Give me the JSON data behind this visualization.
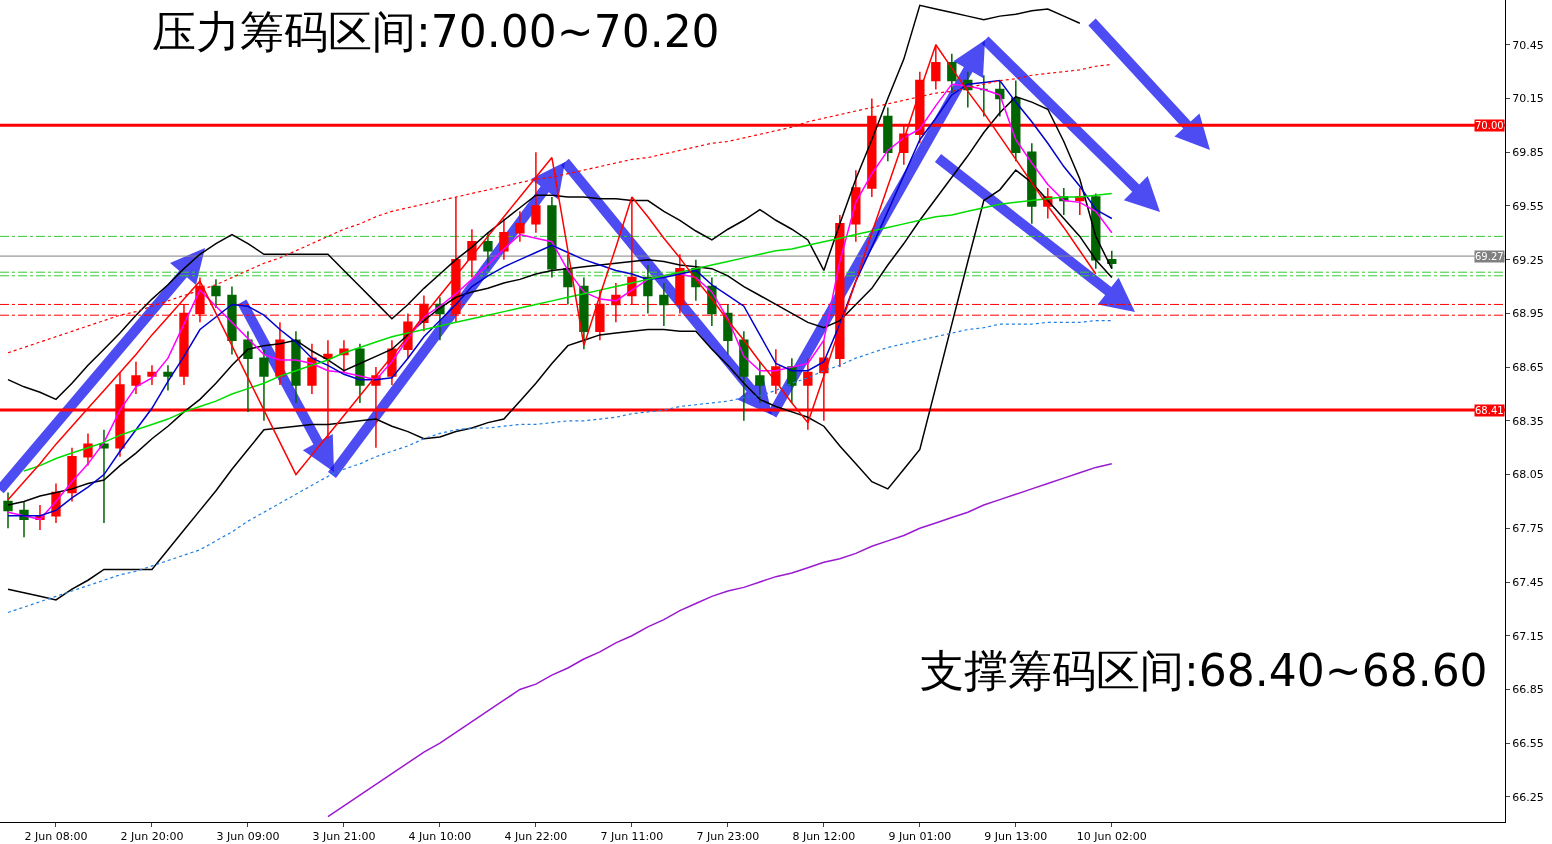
{
  "chart_data": {
    "type": "candlestick",
    "annotations": [
      "压力筹码区间:70.00~70.20",
      "支撑筹码区间:68.40~68.60"
    ],
    "categories": [
      null,
      null,
      null,
      "2 Jun 08:00",
      null,
      null,
      null,
      null,
      null,
      "2 Jun 20:00",
      null,
      null,
      null,
      null,
      null,
      "3 Jun 09:00",
      null,
      null,
      null,
      null,
      null,
      "3 Jun 21:00",
      null,
      null,
      null,
      null,
      null,
      "4 Jun 10:00",
      null,
      null,
      null,
      null,
      null,
      "4 Jun 22:00",
      null,
      null,
      null,
      null,
      null,
      "7 Jun 11:00",
      null,
      null,
      null,
      null,
      null,
      "7 Jun 23:00",
      null,
      null,
      null,
      null,
      null,
      "8 Jun 12:00",
      null,
      null,
      null,
      null,
      null,
      "9 Jun 01:00",
      null,
      null,
      null,
      null,
      null,
      "9 Jun 13:00",
      null,
      null,
      null,
      null,
      null,
      "10 Jun 02:00"
    ],
    "ohlc": [
      [
        67.9,
        67.95,
        67.75,
        67.85
      ],
      [
        67.85,
        67.9,
        67.7,
        67.8
      ],
      [
        67.8,
        67.88,
        67.74,
        67.82
      ],
      [
        67.82,
        68.0,
        67.78,
        67.95
      ],
      [
        67.95,
        68.2,
        67.9,
        68.15
      ],
      [
        68.15,
        68.28,
        68.1,
        68.22
      ],
      [
        68.22,
        68.3,
        67.78,
        68.2
      ],
      [
        68.2,
        68.62,
        68.15,
        68.55
      ],
      [
        68.55,
        68.68,
        68.5,
        68.6
      ],
      [
        68.6,
        68.66,
        68.55,
        68.62
      ],
      [
        68.62,
        68.66,
        68.52,
        68.6
      ],
      [
        68.6,
        69.0,
        68.55,
        68.95
      ],
      [
        68.95,
        69.15,
        68.9,
        69.1
      ],
      [
        69.1,
        69.14,
        68.98,
        69.05
      ],
      [
        69.05,
        69.1,
        68.72,
        68.8
      ],
      [
        68.8,
        68.85,
        68.4,
        68.7
      ],
      [
        68.7,
        68.75,
        68.35,
        68.6
      ],
      [
        68.6,
        68.9,
        68.55,
        68.8
      ],
      [
        68.8,
        68.85,
        68.45,
        68.55
      ],
      [
        68.55,
        68.78,
        68.5,
        68.7
      ],
      [
        68.7,
        68.8,
        68.25,
        68.72
      ],
      [
        68.72,
        68.8,
        68.62,
        68.75
      ],
      [
        68.75,
        68.78,
        68.45,
        68.55
      ],
      [
        68.55,
        68.65,
        68.2,
        68.6
      ],
      [
        68.6,
        68.8,
        68.55,
        68.75
      ],
      [
        68.75,
        68.95,
        68.7,
        68.9
      ],
      [
        68.9,
        69.05,
        68.85,
        69.0
      ],
      [
        69.0,
        69.04,
        68.8,
        68.95
      ],
      [
        68.95,
        69.6,
        68.9,
        69.25
      ],
      [
        69.25,
        69.42,
        69.15,
        69.35
      ],
      [
        69.35,
        69.4,
        69.2,
        69.3
      ],
      [
        69.3,
        69.48,
        69.25,
        69.4
      ],
      [
        69.4,
        69.52,
        69.35,
        69.45
      ],
      [
        69.45,
        69.85,
        69.4,
        69.55
      ],
      [
        69.55,
        69.6,
        69.15,
        69.2
      ],
      [
        69.2,
        69.28,
        69.0,
        69.1
      ],
      [
        69.1,
        69.15,
        68.75,
        68.85
      ],
      [
        68.85,
        69.08,
        68.8,
        69.0
      ],
      [
        69.0,
        69.12,
        68.9,
        69.05
      ],
      [
        69.05,
        69.6,
        69.0,
        69.15
      ],
      [
        69.15,
        69.22,
        68.95,
        69.05
      ],
      [
        69.05,
        69.12,
        68.88,
        69.0
      ],
      [
        69.0,
        69.28,
        68.95,
        69.2
      ],
      [
        69.2,
        69.25,
        69.02,
        69.1
      ],
      [
        69.1,
        69.15,
        68.88,
        68.95
      ],
      [
        68.95,
        69.0,
        68.72,
        68.8
      ],
      [
        68.8,
        68.85,
        68.35,
        68.6
      ],
      [
        68.6,
        68.68,
        68.45,
        68.55
      ],
      [
        68.55,
        68.75,
        68.5,
        68.65
      ],
      [
        68.65,
        68.7,
        68.45,
        68.55
      ],
      [
        68.55,
        68.7,
        68.3,
        68.62
      ],
      [
        68.62,
        68.8,
        68.35,
        68.7
      ],
      [
        68.7,
        69.5,
        68.65,
        69.45
      ],
      [
        69.45,
        69.75,
        69.35,
        69.65
      ],
      [
        69.65,
        70.15,
        69.6,
        70.05
      ],
      [
        70.05,
        70.1,
        69.8,
        69.85
      ],
      [
        69.85,
        70.0,
        69.78,
        69.95
      ],
      [
        69.95,
        70.3,
        69.9,
        70.25
      ],
      [
        70.25,
        70.45,
        70.2,
        70.35
      ],
      [
        70.35,
        70.4,
        70.18,
        70.25
      ],
      [
        70.25,
        70.3,
        70.1,
        70.2
      ],
      [
        70.2,
        70.28,
        70.05,
        70.2
      ],
      [
        70.2,
        70.25,
        70.05,
        70.15
      ],
      [
        70.15,
        70.25,
        69.8,
        69.85
      ],
      [
        69.85,
        69.9,
        69.45,
        69.55
      ],
      [
        69.55,
        69.65,
        69.48,
        69.6
      ],
      [
        69.6,
        69.65,
        69.5,
        69.58
      ],
      [
        69.58,
        69.65,
        69.5,
        69.6
      ],
      [
        69.6,
        69.62,
        69.2,
        69.25
      ],
      [
        69.25,
        69.3,
        69.2,
        69.23
      ]
    ],
    "series": [
      {
        "type": "line",
        "color": "#000000",
        "values": [
          68.58,
          68.54,
          68.51,
          68.47,
          68.56,
          68.66,
          68.75,
          68.84,
          68.94,
          69.03,
          69.11,
          69.2,
          69.28,
          69.34,
          69.39,
          69.34,
          69.28,
          69.28,
          69.28,
          69.28,
          69.28,
          69.19,
          69.1,
          69.01,
          68.92,
          69.0,
          69.09,
          69.17,
          69.25,
          69.32,
          69.4,
          69.47,
          69.54,
          69.61,
          69.61,
          69.6,
          69.6,
          69.59,
          69.59,
          69.58,
          69.58,
          69.52,
          69.47,
          69.41,
          69.36,
          69.42,
          69.47,
          69.53,
          69.47,
          69.42,
          69.36,
          69.19,
          69.45,
          69.7,
          69.92,
          70.15,
          70.37,
          70.67,
          70.65,
          70.63,
          70.61,
          70.59,
          70.61,
          70.62,
          70.64,
          70.65,
          70.61,
          70.57,
          null,
          null
        ]
      },
      {
        "type": "line",
        "color": "#000000",
        "values": [
          67.41,
          67.39,
          67.37,
          67.35,
          67.41,
          67.46,
          67.52,
          67.52,
          67.52,
          67.52,
          67.63,
          67.74,
          67.85,
          67.96,
          68.08,
          68.19,
          68.3,
          68.31,
          68.32,
          68.33,
          68.33,
          68.34,
          68.35,
          68.36,
          68.32,
          68.29,
          68.25,
          68.26,
          68.29,
          68.31,
          68.34,
          68.36,
          68.46,
          68.56,
          68.67,
          68.77,
          68.8,
          68.83,
          68.84,
          68.85,
          68.86,
          68.86,
          68.85,
          68.85,
          68.75,
          68.66,
          68.56,
          68.47,
          68.43,
          68.4,
          68.37,
          68.32,
          68.21,
          68.11,
          68.01,
          67.97,
          68.08,
          68.19,
          68.54,
          68.89,
          69.24,
          69.58,
          69.64,
          69.75,
          69.68,
          69.58,
          69.48,
          69.38,
          69.25,
          69.15
        ]
      },
      {
        "type": "line",
        "color": "#000000",
        "values": [
          67.88,
          67.9,
          67.93,
          67.95,
          67.97,
          68.0,
          68.02,
          68.1,
          68.17,
          68.25,
          68.32,
          68.4,
          68.47,
          68.56,
          68.66,
          68.75,
          68.77,
          68.78,
          68.8,
          68.74,
          68.69,
          68.63,
          68.67,
          68.71,
          68.75,
          68.83,
          68.91,
          68.98,
          69.04,
          69.07,
          69.09,
          69.12,
          69.14,
          69.17,
          69.19,
          69.2,
          69.21,
          69.22,
          69.23,
          69.24,
          69.25,
          69.24,
          69.22,
          69.21,
          69.2,
          69.16,
          69.1,
          69.05,
          69.0,
          68.95,
          68.9,
          68.87,
          68.91,
          69.0,
          69.09,
          69.22,
          69.34,
          69.47,
          69.59,
          69.71,
          69.83,
          69.96,
          70.07,
          70.16,
          70.13,
          70.09,
          69.91,
          69.7,
          69.38,
          69.2
        ]
      },
      {
        "type": "line",
        "color": "#ff00ff",
        "values": [
          67.84,
          67.82,
          67.8,
          67.9,
          68.01,
          68.11,
          68.23,
          68.41,
          68.54,
          68.59,
          68.7,
          68.89,
          69.08,
          68.99,
          68.9,
          68.81,
          68.72,
          68.69,
          68.69,
          68.67,
          68.63,
          68.62,
          68.6,
          68.58,
          68.68,
          68.81,
          68.93,
          68.99,
          69.06,
          69.14,
          69.22,
          69.31,
          69.39,
          69.37,
          69.35,
          69.19,
          69.07,
          69.03,
          69.02,
          69.08,
          69.14,
          69.16,
          69.17,
          69.15,
          69.07,
          68.92,
          68.71,
          68.63,
          68.63,
          68.65,
          68.67,
          68.8,
          69.24,
          69.57,
          69.73,
          69.86,
          69.93,
          69.98,
          70.11,
          70.23,
          70.22,
          70.2,
          70.17,
          69.92,
          69.79,
          69.67,
          69.58,
          69.57,
          69.52,
          69.4
        ]
      },
      {
        "type": "line",
        "color": "#0000cc",
        "values": [
          67.82,
          67.82,
          67.82,
          67.85,
          67.92,
          67.98,
          68.05,
          68.18,
          68.3,
          68.42,
          68.57,
          68.71,
          68.86,
          68.93,
          69.0,
          68.99,
          68.94,
          68.86,
          68.79,
          68.7,
          68.66,
          68.61,
          68.58,
          68.58,
          68.59,
          68.7,
          68.82,
          68.91,
          69.0,
          69.1,
          69.16,
          69.21,
          69.25,
          69.29,
          69.33,
          69.29,
          69.25,
          69.22,
          69.19,
          69.17,
          69.14,
          69.15,
          69.17,
          69.19,
          69.11,
          69.05,
          68.99,
          68.83,
          68.67,
          68.63,
          68.63,
          68.68,
          68.89,
          69.13,
          69.32,
          69.52,
          69.72,
          69.92,
          70.04,
          70.17,
          70.23,
          70.24,
          70.25,
          70.13,
          70.02,
          69.9,
          69.77,
          69.66,
          69.53,
          69.48
        ]
      },
      {
        "type": "line",
        "color": "#00dd00",
        "values": [
          null,
          68.07,
          68.1,
          68.14,
          68.17,
          68.2,
          68.23,
          68.27,
          68.3,
          68.33,
          68.36,
          68.4,
          68.43,
          68.46,
          68.5,
          68.53,
          68.56,
          68.6,
          68.63,
          68.66,
          68.69,
          68.73,
          68.76,
          68.79,
          68.82,
          68.84,
          68.86,
          68.88,
          68.9,
          68.92,
          68.94,
          68.96,
          68.98,
          69.0,
          69.02,
          69.04,
          69.06,
          69.08,
          69.1,
          69.12,
          69.14,
          69.16,
          69.18,
          69.2,
          69.22,
          69.24,
          69.26,
          69.28,
          69.3,
          69.31,
          69.33,
          69.35,
          69.37,
          69.39,
          69.41,
          69.43,
          69.45,
          69.47,
          69.49,
          69.5,
          69.52,
          69.54,
          69.56,
          69.57,
          69.58,
          69.59,
          69.6,
          69.6,
          69.61,
          69.62
        ]
      },
      {
        "type": "line",
        "color": "#9a1ad0",
        "values": [
          null,
          null,
          null,
          null,
          null,
          null,
          null,
          null,
          null,
          null,
          null,
          null,
          null,
          null,
          null,
          null,
          null,
          null,
          null,
          null,
          66.14,
          66.2,
          66.26,
          66.32,
          66.38,
          66.44,
          66.5,
          66.55,
          66.61,
          66.67,
          66.73,
          66.79,
          66.85,
          66.88,
          66.93,
          66.97,
          67.02,
          67.06,
          67.11,
          67.15,
          67.2,
          67.24,
          67.29,
          67.33,
          67.37,
          67.4,
          67.42,
          67.45,
          67.48,
          67.5,
          67.53,
          67.56,
          67.58,
          67.61,
          67.65,
          67.68,
          67.71,
          67.75,
          67.78,
          67.81,
          67.84,
          67.88,
          67.91,
          67.94,
          67.97,
          68.0,
          68.03,
          68.06,
          68.09,
          68.11
        ]
      },
      {
        "type": "line",
        "color": "#ff0000",
        "line_style": "dotted",
        "values": [
          68.73,
          68.76,
          68.79,
          68.82,
          68.85,
          68.88,
          68.91,
          68.94,
          68.96,
          68.99,
          69.02,
          69.05,
          69.08,
          69.11,
          69.15,
          69.19,
          69.23,
          69.26,
          69.3,
          69.34,
          69.38,
          69.42,
          69.45,
          69.49,
          69.52,
          69.54,
          69.56,
          69.58,
          69.6,
          69.62,
          69.64,
          69.66,
          69.68,
          69.7,
          69.71,
          69.73,
          69.75,
          69.77,
          69.79,
          69.81,
          69.82,
          69.84,
          69.86,
          69.88,
          69.9,
          69.91,
          69.93,
          69.95,
          69.97,
          69.99,
          70.02,
          70.04,
          70.06,
          70.08,
          70.1,
          70.12,
          70.14,
          70.16,
          70.18,
          70.19,
          70.21,
          70.23,
          70.25,
          70.26,
          70.28,
          70.29,
          70.3,
          70.31,
          70.33,
          70.34
        ]
      },
      {
        "type": "line",
        "color": "#1e7fe0",
        "line_style": "dotted",
        "values": [
          67.28,
          67.31,
          67.34,
          67.37,
          67.4,
          67.43,
          67.46,
          67.49,
          67.51,
          67.54,
          67.57,
          67.6,
          67.63,
          67.68,
          67.73,
          67.79,
          67.84,
          67.89,
          67.94,
          67.99,
          68.04,
          68.08,
          68.11,
          68.15,
          68.18,
          68.21,
          68.25,
          68.28,
          68.3,
          68.31,
          68.31,
          68.32,
          68.33,
          68.33,
          68.34,
          68.35,
          68.35,
          68.36,
          68.37,
          68.39,
          68.4,
          68.41,
          68.43,
          68.44,
          68.45,
          68.46,
          68.48,
          68.49,
          68.52,
          68.56,
          68.59,
          68.63,
          68.66,
          68.7,
          68.73,
          68.76,
          68.78,
          68.8,
          68.82,
          68.84,
          68.86,
          68.87,
          68.89,
          68.89,
          68.89,
          68.9,
          68.9,
          68.9,
          68.91,
          68.91
        ]
      },
      {
        "type": "line",
        "color": "#ff0000",
        "values": [
          67.91,
          68.01,
          68.11,
          68.22,
          68.32,
          68.42,
          68.52,
          68.62,
          68.72,
          68.83,
          68.93,
          69.03,
          69.13,
          68.95,
          68.77,
          68.59,
          68.41,
          68.23,
          68.05,
          68.16,
          68.27,
          68.38,
          68.49,
          68.6,
          68.71,
          68.82,
          68.94,
          69.05,
          69.16,
          69.27,
          69.38,
          69.49,
          69.6,
          69.71,
          69.82,
          69.3,
          68.77,
          69.05,
          69.32,
          69.6,
          69.49,
          69.37,
          69.26,
          69.14,
          69.03,
          68.91,
          68.8,
          68.68,
          68.57,
          68.45,
          68.34,
          68.6,
          68.87,
          69.13,
          69.4,
          69.66,
          69.92,
          70.19,
          70.45,
          70.32,
          70.19,
          70.07,
          69.94,
          69.81,
          69.68,
          69.55,
          69.43,
          69.3,
          69.17,
          null
        ]
      }
    ],
    "ref_lines": [
      {
        "axis": "y",
        "value": 70.0,
        "label": "70.00",
        "color": "#ff0000"
      },
      {
        "axis": "y",
        "value": 68.41,
        "label": "68.41",
        "color": "#ff0000"
      },
      {
        "axis": "y",
        "value": 69.27,
        "label": "69.27",
        "color": "#808080"
      },
      {
        "axis": "y",
        "value": 69.38,
        "color": "#33cc33",
        "line_style": "dashed"
      },
      {
        "axis": "y",
        "value": 69.18,
        "color": "#33cc33",
        "line_style": "dashed"
      },
      {
        "axis": "y",
        "value": 69.16,
        "color": "#33cc33",
        "line_style": "dashed"
      },
      {
        "axis": "y",
        "value": 69.0,
        "color": "#ff0000",
        "line_style": "dashed"
      },
      {
        "axis": "y",
        "value": 68.94,
        "color": "#ff0000",
        "line_style": "dashed"
      }
    ],
    "ylim": [
      66.11,
      70.7
    ],
    "yticks": [
      70.45,
      70.15,
      69.85,
      69.55,
      69.25,
      68.95,
      68.65,
      68.35,
      68.05,
      67.75,
      67.45,
      67.15,
      66.85,
      66.55,
      66.25
    ]
  }
}
